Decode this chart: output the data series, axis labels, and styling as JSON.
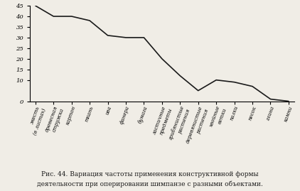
{
  "categories": [
    "жесть\n(в листах)",
    "древесная\nстружка",
    "картон",
    "ткань",
    "ива",
    "фанера",
    "бумага",
    "ластичные\nпредметы",
    "грибянистые\nрастения",
    "деревянистые\nрастения",
    "хвойные\nветки",
    "палки",
    "песок",
    "глина",
    "камни"
  ],
  "values": [
    45,
    40,
    40,
    38,
    31,
    30,
    30,
    20,
    12,
    5,
    10,
    9,
    7,
    1,
    0
  ],
  "line_color": "#1a1a1a",
  "bg_color": "#f0ede6",
  "ylim": [
    0,
    45
  ],
  "yticks": [
    0,
    10,
    15,
    20,
    25,
    30,
    35,
    40,
    45
  ],
  "caption_line1": "Рис. 44. Вариация частоты применения конструктивной формы",
  "caption_line2": "деятельности при оперировании шимпанзе с разными объектами.",
  "tick_fontsize": 6.0,
  "label_fontsize": 5.0,
  "caption_fontsize": 6.5
}
